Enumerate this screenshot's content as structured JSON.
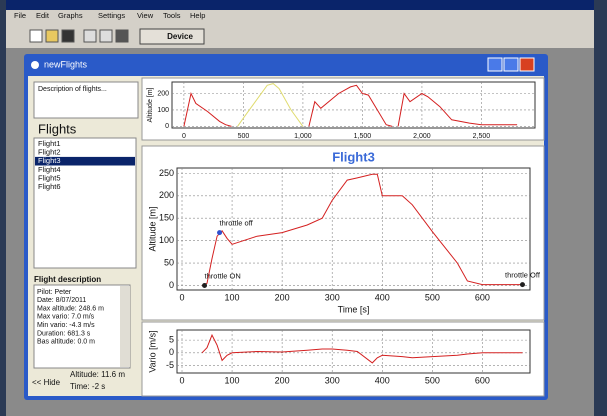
{
  "app": {
    "menu": [
      "File",
      "Edit",
      "Graphs",
      "Settings",
      "View",
      "Tools",
      "Help"
    ],
    "device_button": "Device"
  },
  "window": {
    "title": "newFlights"
  },
  "description_placeholder": "Description of flights...",
  "flights_heading": "Flights",
  "flights": [
    "Flight1",
    "Flight2",
    "Flight3",
    "Flight4",
    "Flight5",
    "Flight6"
  ],
  "flight_description": {
    "heading": "Flight description",
    "lines": [
      "Pilot: Peter",
      "Date: 8/07/2011",
      "Max altitude: 248.6 m",
      "Max vario: 7.0 m/s",
      "Min vario: -4.3 m/s",
      "Duration: 681.3 s",
      "Bas altitude: 0.0 m"
    ]
  },
  "footer": {
    "hide": "<< Hide",
    "altitude": "Altitude: 11.6 m",
    "time": "Time:   -2 s"
  },
  "chart_data": [
    {
      "type": "line",
      "ylabel": "Altitude [m]",
      "xlim": [
        -100,
        2950
      ],
      "ylim": [
        -10,
        270
      ],
      "xticks": [
        0,
        500,
        {
          "value": 1000,
          "label": "1,000"
        },
        {
          "value": 1500,
          "label": "1,500"
        },
        {
          "value": 2000,
          "label": "2,000"
        },
        {
          "value": 2500,
          "label": "2,500"
        }
      ],
      "yticks": [
        0,
        100,
        200
      ],
      "grid": true,
      "series": [
        {
          "color": "#d42020",
          "x": [
            0,
            60,
            100,
            200,
            300,
            350,
            400,
            null,
            1050,
            1100,
            1150,
            1300,
            1400,
            1450,
            1500,
            1550,
            1700,
            1750,
            null,
            1800,
            1850,
            1900,
            2000,
            2050,
            2150,
            2250,
            2400,
            2500,
            2800
          ],
          "values": [
            0,
            200,
            140,
            90,
            30,
            10,
            0,
            null,
            0,
            150,
            110,
            200,
            240,
            250,
            200,
            190,
            10,
            0,
            null,
            0,
            200,
            150,
            200,
            180,
            120,
            40,
            20,
            10,
            10
          ]
        },
        {
          "color": "#e0dc70",
          "x": [
            450,
            500,
            600,
            700,
            750,
            800,
            900,
            1000
          ],
          "values": [
            0,
            50,
            150,
            250,
            260,
            230,
            100,
            0
          ]
        }
      ]
    },
    {
      "type": "line",
      "title": "Flight3",
      "ylabel": "Altitude [m]",
      "xlabel": "Time [s]",
      "xlim": [
        -10,
        695
      ],
      "ylim": [
        -10,
        262
      ],
      "xticks": [
        0,
        100,
        200,
        300,
        400,
        500,
        600
      ],
      "yticks": [
        0,
        50,
        100,
        150,
        200,
        250
      ],
      "grid": true,
      "series": [
        {
          "color": "#d42020",
          "x": [
            40,
            50,
            60,
            70,
            80,
            90,
            100,
            150,
            200,
            250,
            280,
            300,
            330,
            350,
            380,
            390,
            400,
            440,
            460,
            500,
            550,
            570,
            600,
            680
          ],
          "values": [
            0,
            5,
            60,
            110,
            122,
            105,
            92,
            110,
            118,
            135,
            150,
            190,
            235,
            240,
            248,
            248,
            200,
            200,
            180,
            120,
            50,
            10,
            2,
            2
          ]
        }
      ],
      "annotations": [
        {
          "label": "throttle ON",
          "x": 45,
          "y": 0,
          "color": "#202020"
        },
        {
          "label": "throttle off",
          "x": 75,
          "y": 118,
          "color": "#3050d0"
        },
        {
          "label": "throttle Off",
          "x": 680,
          "y": 2,
          "color": "#202020"
        }
      ]
    },
    {
      "type": "line",
      "ylabel": "Vario [m/s]",
      "xlim": [
        -10,
        695
      ],
      "ylim": [
        -8,
        9
      ],
      "xticks": [
        0,
        100,
        200,
        300,
        400,
        500,
        600
      ],
      "yticks": [
        -5,
        0,
        5
      ],
      "grid": true,
      "series": [
        {
          "color": "#d42020",
          "x": [
            40,
            50,
            60,
            70,
            80,
            90,
            100,
            150,
            200,
            250,
            280,
            300,
            330,
            350,
            380,
            390,
            400,
            440,
            460,
            500,
            550,
            570,
            600,
            680
          ],
          "values": [
            0,
            2,
            7,
            3,
            -3,
            -1,
            0,
            0.5,
            0.3,
            1,
            1.5,
            1.5,
            1,
            0.5,
            -4,
            -2,
            -1,
            -1.5,
            -2,
            -1.5,
            -1,
            -0.5,
            0,
            0
          ]
        }
      ]
    }
  ]
}
